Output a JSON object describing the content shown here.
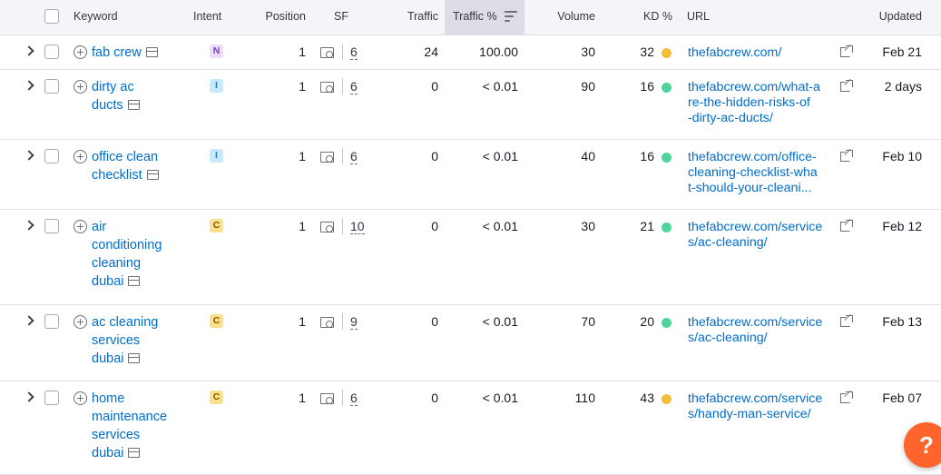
{
  "header": {
    "keyword": "Keyword",
    "intent": "Intent",
    "position": "Position",
    "sf": "SF",
    "traffic": "Traffic",
    "traffic_pct": "Traffic %",
    "volume": "Volume",
    "kd": "KD %",
    "url": "URL",
    "updated": "Updated"
  },
  "colors": {
    "kd_yellow": "#f3bf3a",
    "kd_green": "#4ed59b",
    "link": "#006dca",
    "help_button": "#ff642d"
  },
  "rows": [
    {
      "keyword": [
        "fab crew"
      ],
      "intent": "N",
      "position": "1",
      "sf": "6",
      "traffic": "24",
      "traffic_pct": "100.00",
      "volume": "30",
      "kd": "32",
      "kd_color": "yellow",
      "url": [
        "thefabcrew.com/"
      ],
      "updated": "Feb 21"
    },
    {
      "keyword": [
        "dirty ac",
        "ducts"
      ],
      "intent": "I",
      "position": "1",
      "sf": "6",
      "traffic": "0",
      "traffic_pct": "< 0.01",
      "volume": "90",
      "kd": "16",
      "kd_color": "green",
      "url": [
        "thefabcrew.com/what-a",
        "re-the-hidden-risks-of",
        "-dirty-ac-ducts/"
      ],
      "updated": "2 days"
    },
    {
      "keyword": [
        "office clean",
        "checklist"
      ],
      "intent": "I",
      "position": "1",
      "sf": "6",
      "traffic": "0",
      "traffic_pct": "< 0.01",
      "volume": "40",
      "kd": "16",
      "kd_color": "green",
      "url": [
        "thefabcrew.com/office-",
        "cleaning-checklist-wha",
        "t-should-your-cleani..."
      ],
      "updated": "Feb 10"
    },
    {
      "keyword": [
        "air",
        "conditioning",
        "cleaning",
        "dubai"
      ],
      "intent": "C",
      "position": "1",
      "sf": "10",
      "traffic": "0",
      "traffic_pct": "< 0.01",
      "volume": "30",
      "kd": "21",
      "kd_color": "green",
      "url": [
        "thefabcrew.com/service",
        "s/ac-cleaning/"
      ],
      "updated": "Feb 12"
    },
    {
      "keyword": [
        "ac cleaning",
        "services",
        "dubai"
      ],
      "intent": "C",
      "position": "1",
      "sf": "9",
      "traffic": "0",
      "traffic_pct": "< 0.01",
      "volume": "70",
      "kd": "20",
      "kd_color": "green",
      "url": [
        "thefabcrew.com/service",
        "s/ac-cleaning/"
      ],
      "updated": "Feb 13"
    },
    {
      "keyword": [
        "home",
        "maintenance",
        "services",
        "dubai"
      ],
      "intent": "C",
      "position": "1",
      "sf": "6",
      "traffic": "0",
      "traffic_pct": "< 0.01",
      "volume": "110",
      "kd": "43",
      "kd_color": "yellow",
      "url": [
        "thefabcrew.com/service",
        "s/handy-man-service/"
      ],
      "updated": "Feb 07"
    }
  ],
  "help": {
    "label": "?"
  }
}
